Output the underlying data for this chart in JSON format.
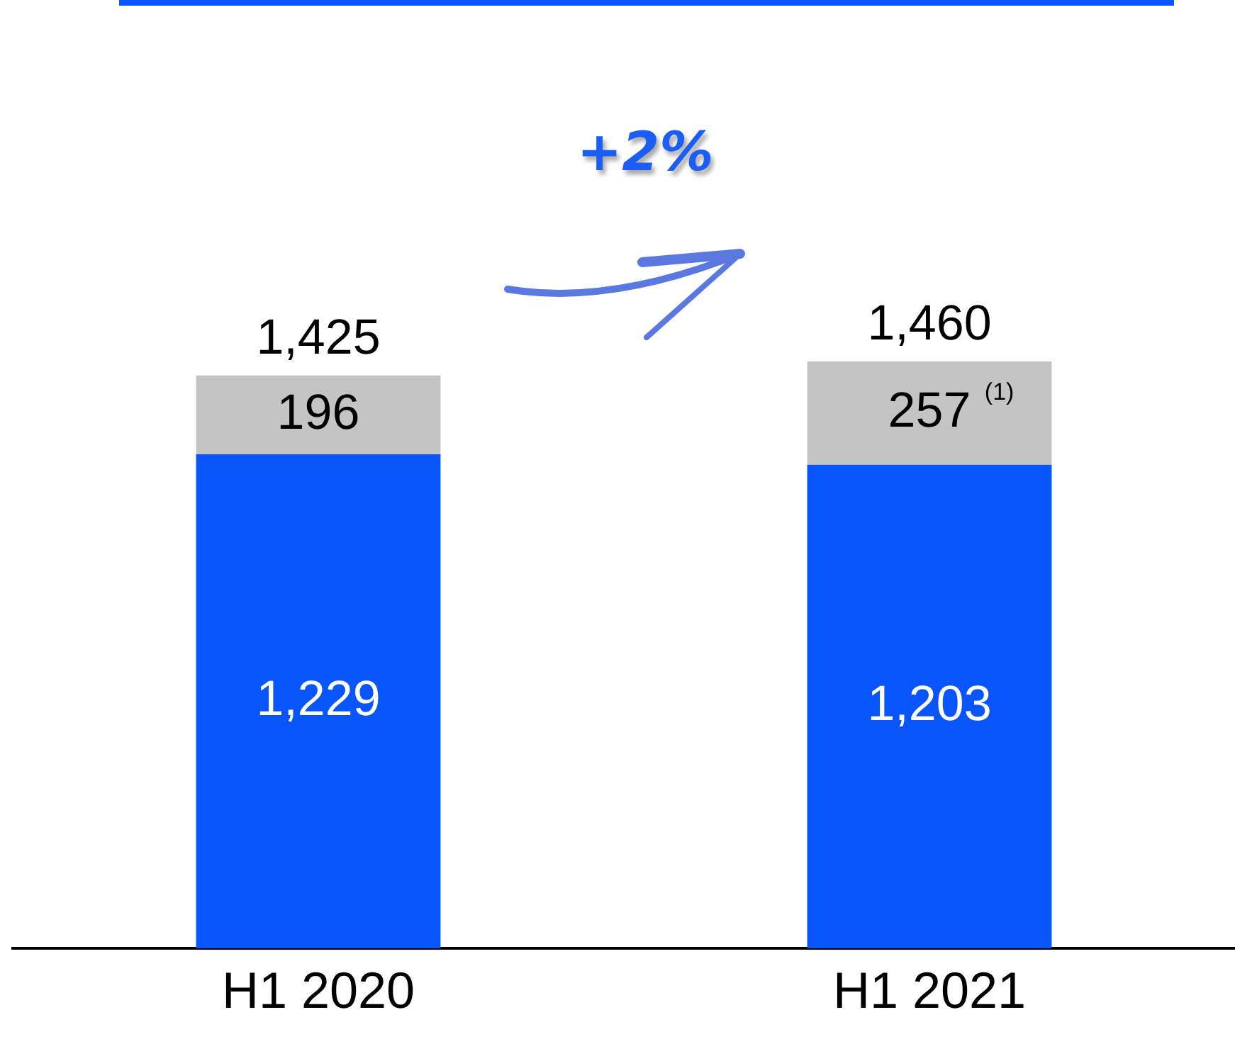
{
  "chart_data": {
    "type": "bar",
    "stacked": true,
    "categories": [
      "H1 2020",
      "H1 2021"
    ],
    "series": [
      {
        "color": "#0855fb",
        "values": [
          1229,
          1203
        ],
        "value_labels": [
          "1,229",
          "1,203"
        ]
      },
      {
        "color": "#c4c4c4",
        "values": [
          196,
          257
        ],
        "value_labels": [
          "196",
          "257 $^{(1)}$"
        ]
      }
    ],
    "totals": [
      "1,425",
      "1,460"
    ],
    "annotations": [
      "+2%"
    ]
  }
}
